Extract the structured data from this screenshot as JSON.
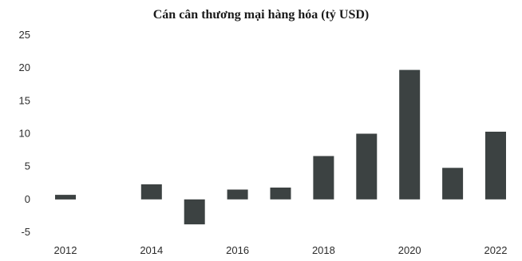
{
  "chart_data": {
    "type": "bar",
    "title": "Cán cân thương mại hàng hóa (tỷ USD)",
    "xlabel": "",
    "ylabel": "",
    "categories": [
      "2012",
      "2013",
      "2014",
      "2015",
      "2016",
      "2017",
      "2018",
      "2019",
      "2020",
      "2021",
      "2022"
    ],
    "x_tick_labels": [
      "2012",
      "",
      "2014",
      "",
      "2016",
      "",
      "2018",
      "",
      "2020",
      "",
      "2022"
    ],
    "values": [
      0.7,
      0.0,
      2.3,
      -3.8,
      1.5,
      1.8,
      6.6,
      10.0,
      19.7,
      4.8,
      10.3
    ],
    "ylim": [
      -5,
      25
    ],
    "yticks": [
      25,
      20,
      15,
      10,
      5,
      0,
      -5
    ],
    "grid": false,
    "bar_color": "#3c4242"
  }
}
